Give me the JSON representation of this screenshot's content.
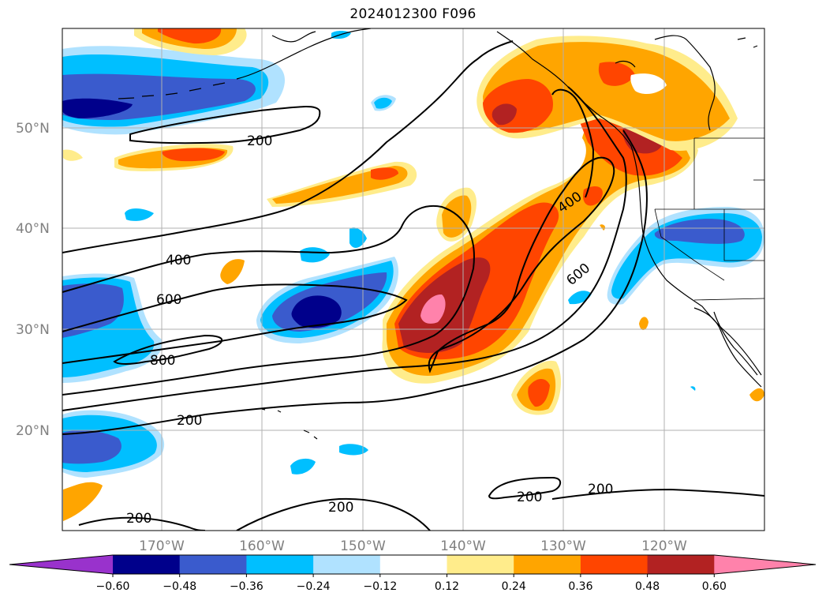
{
  "title": "2024012300 F096",
  "map": {
    "lat_labels": [
      "50°N",
      "40°N",
      "30°N",
      "20°N"
    ],
    "lon_labels": [
      "170°W",
      "160°W",
      "150°W",
      "140°W",
      "130°W",
      "120°W"
    ],
    "contour_labels": [
      "200",
      "400",
      "600",
      "800",
      "200",
      "400",
      "600",
      "200",
      "200",
      "200",
      "200"
    ]
  },
  "colorbar": {
    "ticks": [
      "−0.60",
      "−0.48",
      "−0.36",
      "−0.24",
      "−0.12",
      "0.12",
      "0.24",
      "0.36",
      "0.48",
      "0.60"
    ],
    "colors": [
      "#9932cc",
      "#00008b",
      "#3a5bcd",
      "#00bfff",
      "#b0e2ff",
      "#ffffff",
      "#ffec8b",
      "#ffa500",
      "#ff4500",
      "#b22222",
      "#ff82ab"
    ]
  }
}
